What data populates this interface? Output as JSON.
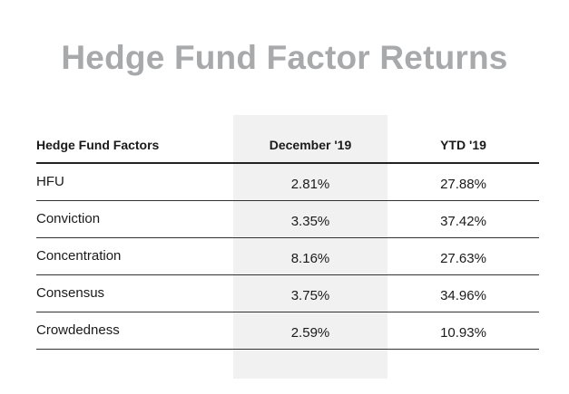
{
  "title": "Hedge Fund Factor Returns",
  "table": {
    "headers": [
      "Hedge Fund Factors",
      "December '19",
      "YTD '19"
    ],
    "rows": [
      {
        "factor": "HFU",
        "december": "2.81%",
        "ytd": "27.88%"
      },
      {
        "factor": "Conviction",
        "december": "3.35%",
        "ytd": "37.42%"
      },
      {
        "factor": "Concentration",
        "december": "8.16%",
        "ytd": "27.63%"
      },
      {
        "factor": "Consensus",
        "december": "3.75%",
        "ytd": "34.96%"
      },
      {
        "factor": "Crowdedness",
        "december": "2.59%",
        "ytd": "10.93%"
      }
    ]
  },
  "colors": {
    "title": "#a8a9ab",
    "highlight_column": "#f1f1f2",
    "rule": "#333333"
  }
}
